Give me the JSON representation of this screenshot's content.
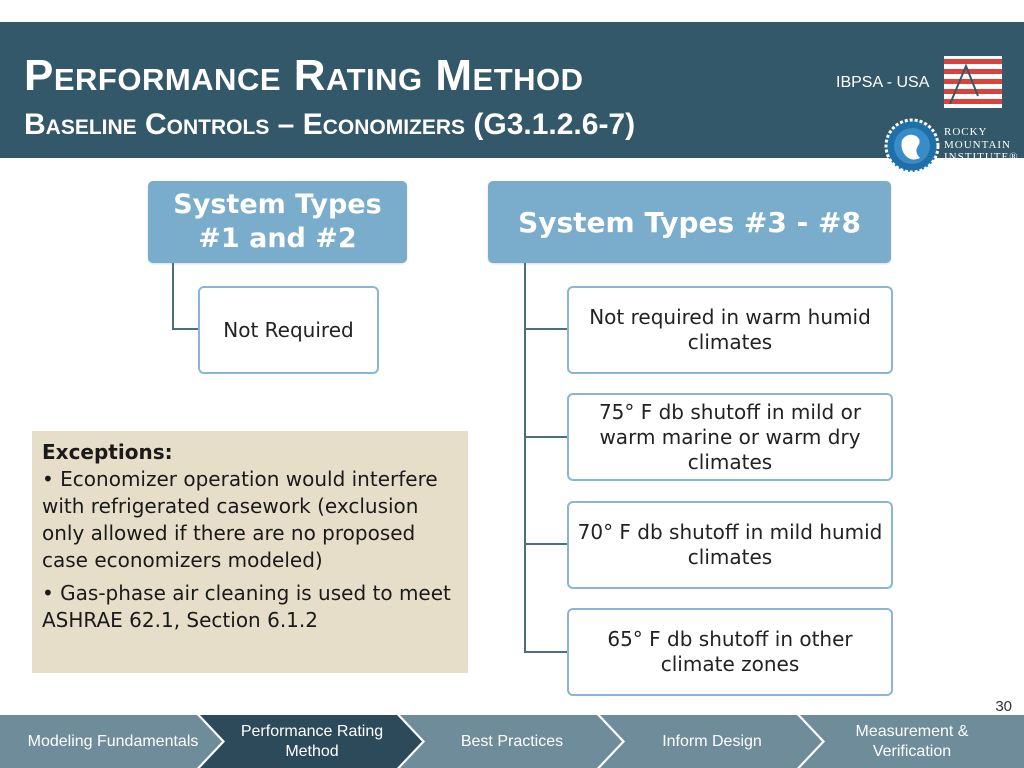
{
  "header": {
    "title": "Performance Rating Method",
    "subtitle": "Baseline Controls – Economizers (G3.1.2.6-7)",
    "org_label": "IBPSA - USA",
    "rmi_lines": [
      "Rocky",
      "Mountain",
      "Institute®"
    ]
  },
  "diagram": {
    "group1": {
      "heading": "System Types #1 and #2",
      "items": [
        "Not Required"
      ]
    },
    "group2": {
      "heading": "System Types #3 - #8",
      "items": [
        "Not required in warm humid climates",
        "75° F db shutoff in mild or warm marine or warm dry climates",
        "70° F db shutoff in mild humid climates",
        "65° F db shutoff in other climate zones"
      ]
    }
  },
  "exceptions": {
    "title": "Exceptions:",
    "items": [
      "Economizer operation would interfere with refrigerated casework (exclusion only allowed if there are no proposed case economizers modeled)",
      "Gas-phase air cleaning is used to meet ASHRAE 62.1, Section 6.1.2"
    ]
  },
  "page_number": "30",
  "nav": {
    "items": [
      {
        "label": "Modeling Fundamentals"
      },
      {
        "label": "Performance Rating Method"
      },
      {
        "label": "Best Practices"
      },
      {
        "label": "Inform Design"
      },
      {
        "label": "Measurement & Verification"
      }
    ],
    "active_index": 1
  },
  "colors": {
    "header_bg": "#335869",
    "box_heading": "#7aaccb",
    "node_border": "#8bb6d1",
    "exceptions_bg": "#e6dec8",
    "nav_inactive": "#6e8c9a",
    "nav_active": "#2c4a59",
    "flag_red": "#d8443d"
  }
}
